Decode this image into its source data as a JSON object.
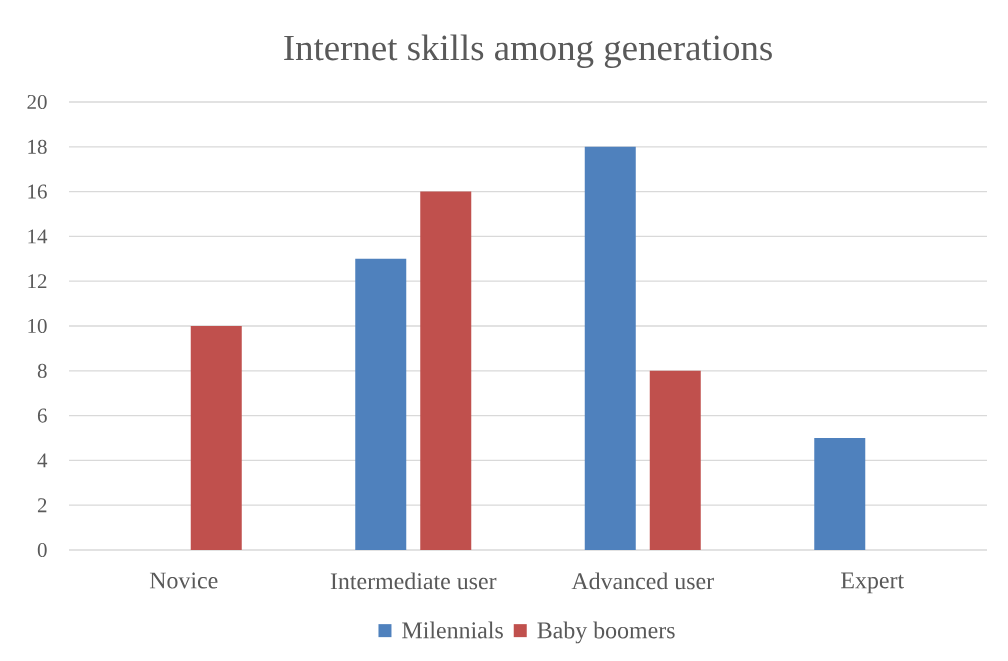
{
  "chart_data": {
    "type": "bar",
    "title": "Internet skills among generations",
    "categories": [
      "Novice",
      "Intermediate user",
      "Advanced user",
      "Expert"
    ],
    "series": [
      {
        "name": "Milennials",
        "color": "#4f81bd",
        "values": [
          0,
          13,
          18,
          5
        ]
      },
      {
        "name": "Baby boomers",
        "color": "#c0504d",
        "values": [
          10,
          16,
          8,
          0
        ]
      }
    ],
    "ylim": [
      0,
      20
    ],
    "yticks": [
      0,
      2,
      4,
      6,
      8,
      10,
      12,
      14,
      16,
      18,
      20
    ],
    "grid": "y",
    "legend": "bottom"
  }
}
